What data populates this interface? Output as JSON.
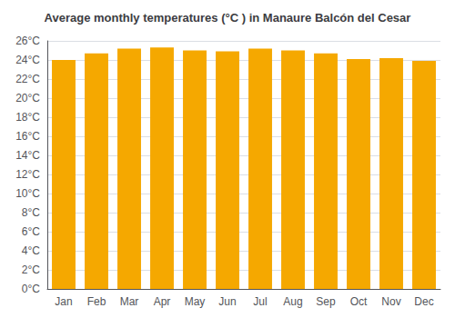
{
  "chart_data": {
    "type": "bar",
    "title": "Average monthly temperatures (°C ) in Manaure Balcón del Cesar",
    "categories": [
      "Jan",
      "Feb",
      "Mar",
      "Apr",
      "May",
      "Jun",
      "Jul",
      "Aug",
      "Sep",
      "Oct",
      "Nov",
      "Dec"
    ],
    "values": [
      24.0,
      24.7,
      25.2,
      25.3,
      25.0,
      24.9,
      25.2,
      25.0,
      24.7,
      24.1,
      24.2,
      23.9
    ],
    "color": "#F5A800",
    "ylim": [
      0,
      26
    ],
    "yticks": [
      {
        "value": 0,
        "label": "0°C"
      },
      {
        "value": 2,
        "label": "2°C"
      },
      {
        "value": 4,
        "label": "4°C"
      },
      {
        "value": 6,
        "label": "6°C"
      },
      {
        "value": 8,
        "label": "8°C"
      },
      {
        "value": 10,
        "label": "10°C"
      },
      {
        "value": 12,
        "label": "12°C"
      },
      {
        "value": 14,
        "label": "14°C"
      },
      {
        "value": 16,
        "label": "16°C"
      },
      {
        "value": 18,
        "label": "18°C"
      },
      {
        "value": 20,
        "label": "20°C"
      },
      {
        "value": 22,
        "label": "22°C"
      },
      {
        "value": 24,
        "label": "24°C"
      },
      {
        "value": 26,
        "label": "26°C"
      }
    ],
    "grid": true
  }
}
